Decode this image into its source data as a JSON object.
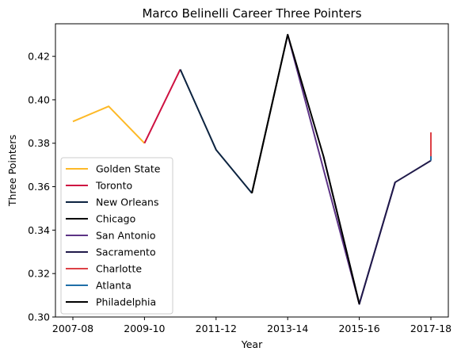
{
  "chart_data": {
    "type": "line",
    "title": "Marco Belinelli Career Three Pointers",
    "xlabel": "Year",
    "ylabel": "Three Pointers",
    "x_categories": [
      "2007-08",
      "2008-09",
      "2009-10",
      "2010-11",
      "2011-12",
      "2012-13",
      "2013-14",
      "2014-15",
      "2015-16",
      "2016-17",
      "2017-18"
    ],
    "x_tick_labels": [
      "2007-08",
      "2009-10",
      "2011-12",
      "2013-14",
      "2015-16",
      "2017-18"
    ],
    "y_tick_labels": [
      "0.30",
      "0.32",
      "0.34",
      "0.36",
      "0.38",
      "0.40",
      "0.42"
    ],
    "ylim": [
      0.3,
      0.435
    ],
    "grid": false,
    "legend_position": "lower-left",
    "series": [
      {
        "name": "Golden State",
        "color": "#FDB927",
        "points": [
          [
            "2007-08",
            0.39
          ],
          [
            "2008-09",
            0.397
          ],
          [
            "2009-10",
            0.38
          ]
        ]
      },
      {
        "name": "Toronto",
        "color": "#CE1141",
        "points": [
          [
            "2009-10",
            0.38
          ],
          [
            "2010-11",
            0.414
          ]
        ]
      },
      {
        "name": "New Orleans",
        "color": "#0C2340",
        "points": [
          [
            "2010-11",
            0.414
          ],
          [
            "2011-12",
            0.377
          ],
          [
            "2012-13",
            0.357
          ]
        ]
      },
      {
        "name": "Chicago",
        "color": "#000000",
        "points": [
          [
            "2012-13",
            0.357
          ],
          [
            "2013-14",
            0.43
          ]
        ]
      },
      {
        "name": "San Antonio",
        "color": "#5C3385",
        "points": [
          [
            "2013-14",
            0.43
          ],
          [
            "2015-16",
            0.306
          ],
          [
            "2016-17",
            0.362
          ]
        ]
      },
      {
        "name": "Sacramento",
        "color": "#201A4A",
        "points": [
          [
            "2014-15",
            0.374
          ],
          [
            "2015-16",
            0.306
          ],
          [
            "2016-17",
            0.362
          ],
          [
            "2017-18",
            0.372
          ]
        ]
      },
      {
        "name": "Charlotte",
        "color": "#DD4046",
        "points": [
          [
            "2017-18",
            0.372
          ],
          [
            "2017-18",
            0.385
          ]
        ]
      },
      {
        "name": "Atlanta",
        "color": "#1F6FA8",
        "points": [
          [
            "2017-18",
            0.372
          ],
          [
            "2017-18",
            0.374
          ]
        ]
      },
      {
        "name": "Philadelphia",
        "color": "#000000",
        "points": [
          [
            "2012-13",
            0.357
          ],
          [
            "2013-14",
            0.43
          ],
          [
            "2014-15",
            0.374
          ],
          [
            "2015-16",
            0.306
          ]
        ]
      }
    ]
  }
}
